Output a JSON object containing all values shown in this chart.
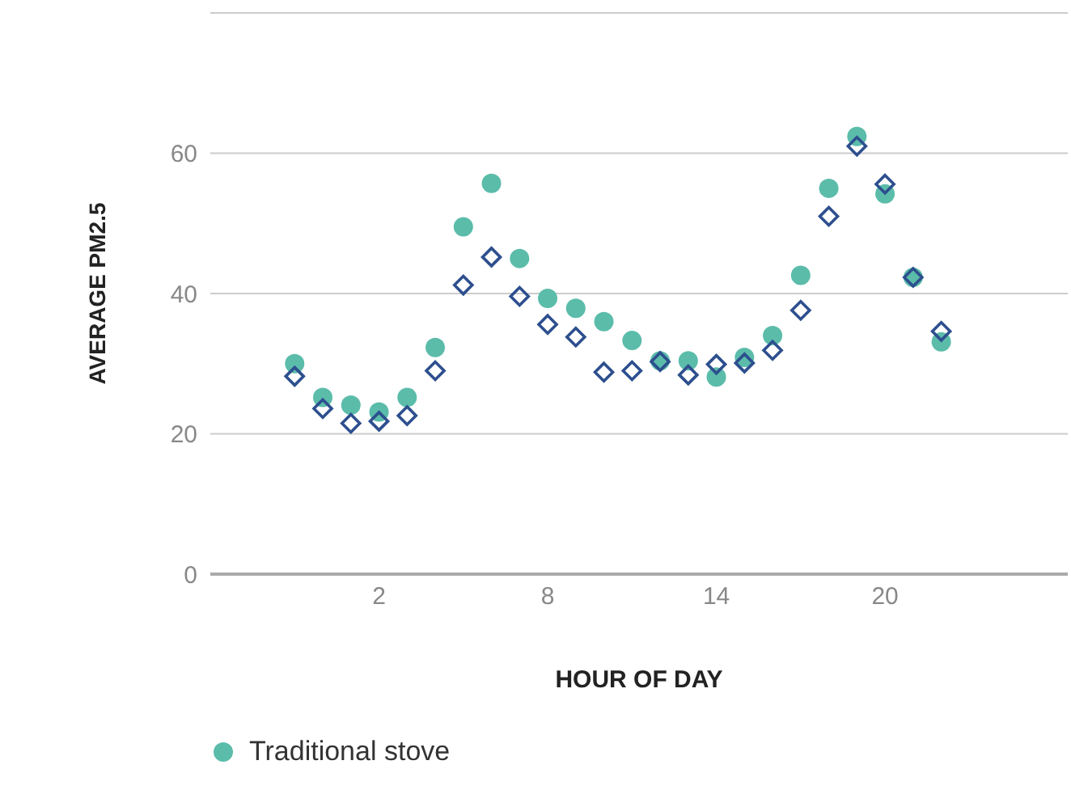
{
  "chart_data": {
    "type": "scatter",
    "xlabel": "HOUR OF DAY",
    "ylabel": "AVERAGE PM2.5",
    "x": [
      -1,
      0,
      1,
      2,
      3,
      4,
      5,
      6,
      7,
      8,
      9,
      10,
      11,
      12,
      13,
      14,
      15,
      16,
      17,
      18,
      19,
      20,
      21,
      22
    ],
    "series": [
      {
        "name": "Traditional stove",
        "color": "#5bbcaa",
        "marker": "circle",
        "values": [
          30.0,
          25.2,
          24.1,
          23.1,
          25.2,
          32.3,
          49.5,
          55.7,
          45.0,
          39.3,
          37.9,
          36.0,
          33.3,
          30.4,
          30.4,
          28.1,
          30.9,
          34.0,
          42.6,
          55.0,
          62.4,
          54.2,
          42.3,
          33.1
        ]
      },
      {
        "color": "#2d4f8e",
        "marker": "diamond",
        "values": [
          28.2,
          23.6,
          21.5,
          21.8,
          22.6,
          29.0,
          41.2,
          45.2,
          39.6,
          35.6,
          33.8,
          28.8,
          29.0,
          30.3,
          28.4,
          29.9,
          30.1,
          31.9,
          37.6,
          51.0,
          61.0,
          55.6,
          42.3,
          34.6
        ]
      }
    ],
    "xlim": [
      -4,
      26.5
    ],
    "xticks": [
      2,
      8,
      14,
      20
    ],
    "ylim": [
      0,
      80
    ],
    "yticks": [
      0,
      20,
      40,
      60,
      {
        "value": 80,
        "label": null
      }
    ],
    "grid": "y",
    "legend": "bottom"
  }
}
